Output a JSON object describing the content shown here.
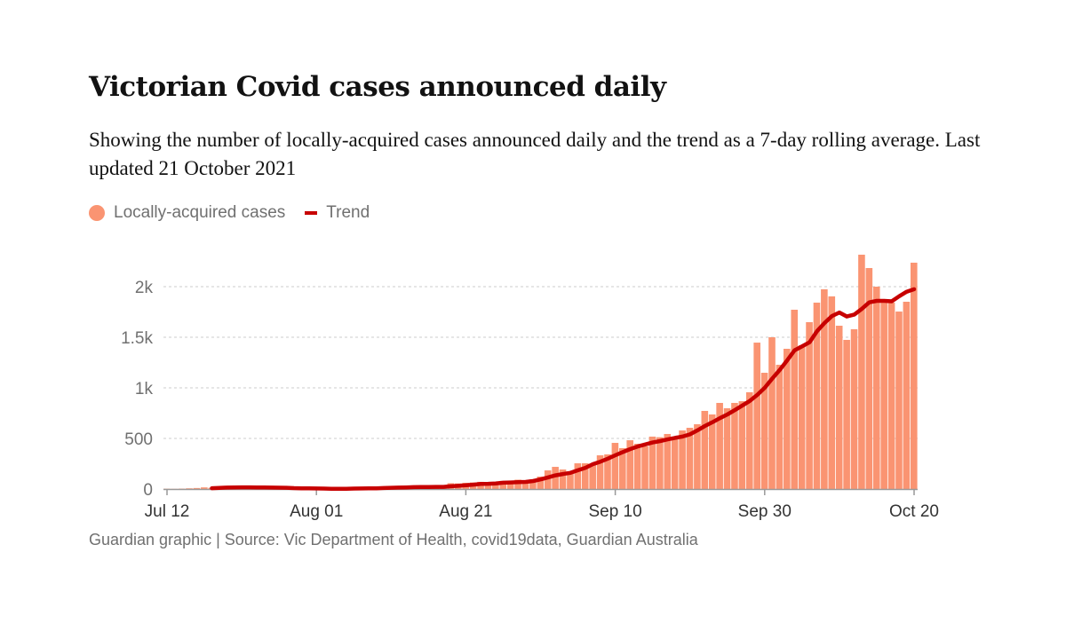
{
  "title": "Victorian Covid cases announced daily",
  "subtitle": "Showing the number of locally-acquired cases announced daily and the trend as a 7-day rolling average. Last updated 21 October 2021",
  "footer": "Guardian graphic | Source: Vic Department of Health, covid19data, Guardian Australia",
  "colors": {
    "bars": "#fa9472",
    "trend": "#c70000",
    "grid": "#cccccc",
    "axis": "#999999",
    "text": "#707070"
  },
  "chart_data": {
    "type": "bar",
    "title": "",
    "xlabel": "",
    "ylabel": "",
    "ylim": [
      0,
      2350
    ],
    "grid": "horizontal dotted",
    "legend_placement": "top-left",
    "legend": [
      {
        "name": "Locally-acquired cases",
        "type": "bar",
        "color": "#fa9472"
      },
      {
        "name": "Trend",
        "type": "line",
        "color": "#c70000"
      }
    ],
    "y_ticks": [
      {
        "value": 0,
        "label": "0"
      },
      {
        "value": 500,
        "label": "500"
      },
      {
        "value": 1000,
        "label": "1k"
      },
      {
        "value": 1500,
        "label": "1.5k"
      },
      {
        "value": 2000,
        "label": "2k"
      }
    ],
    "x_ticks": [
      "Jul 12",
      "Aug 01",
      "Aug 21",
      "Sep 10",
      "Sep 30",
      "Oct 20"
    ],
    "x": [
      "Jul 12",
      "Jul 13",
      "Jul 14",
      "Jul 15",
      "Jul 16",
      "Jul 17",
      "Jul 18",
      "Jul 19",
      "Jul 20",
      "Jul 21",
      "Jul 22",
      "Jul 23",
      "Jul 24",
      "Jul 25",
      "Jul 26",
      "Jul 27",
      "Jul 28",
      "Jul 29",
      "Jul 30",
      "Jul 31",
      "Aug 01",
      "Aug 02",
      "Aug 03",
      "Aug 04",
      "Aug 05",
      "Aug 06",
      "Aug 07",
      "Aug 08",
      "Aug 09",
      "Aug 10",
      "Aug 11",
      "Aug 12",
      "Aug 13",
      "Aug 14",
      "Aug 15",
      "Aug 16",
      "Aug 17",
      "Aug 18",
      "Aug 19",
      "Aug 20",
      "Aug 21",
      "Aug 22",
      "Aug 23",
      "Aug 24",
      "Aug 25",
      "Aug 26",
      "Aug 27",
      "Aug 28",
      "Aug 29",
      "Aug 30",
      "Aug 31",
      "Sep 01",
      "Sep 02",
      "Sep 03",
      "Sep 04",
      "Sep 05",
      "Sep 06",
      "Sep 07",
      "Sep 08",
      "Sep 09",
      "Sep 10",
      "Sep 11",
      "Sep 12",
      "Sep 13",
      "Sep 14",
      "Sep 15",
      "Sep 16",
      "Sep 17",
      "Sep 18",
      "Sep 19",
      "Sep 20",
      "Sep 21",
      "Sep 22",
      "Sep 23",
      "Sep 24",
      "Sep 25",
      "Sep 26",
      "Sep 27",
      "Sep 28",
      "Sep 29",
      "Sep 30",
      "Oct 01",
      "Oct 02",
      "Oct 03",
      "Oct 04",
      "Oct 05",
      "Oct 06",
      "Oct 07",
      "Oct 08",
      "Oct 09",
      "Oct 10",
      "Oct 11",
      "Oct 12",
      "Oct 13",
      "Oct 14",
      "Oct 15",
      "Oct 16",
      "Oct 17",
      "Oct 18",
      "Oct 19",
      "Oct 20"
    ],
    "series": [
      {
        "name": "Locally-acquired cases",
        "type": "bar",
        "values": [
          3,
          2,
          4,
          7,
          10,
          16,
          12,
          13,
          22,
          26,
          14,
          10,
          12,
          11,
          10,
          11,
          8,
          0,
          1,
          2,
          2,
          6,
          0,
          3,
          6,
          8,
          11,
          7,
          14,
          20,
          21,
          21,
          15,
          19,
          22,
          24,
          22,
          24,
          57,
          55,
          61,
          65,
          71,
          50,
          45,
          80,
          64,
          92,
          73,
          96,
          123,
          184,
          219,
          193,
          175,
          254,
          254,
          237,
          333,
          342,
          456,
          404,
          482,
          447,
          421,
          518,
          512,
          544,
          509,
          579,
          605,
          640,
          772,
          737,
          851,
          798,
          851,
          868,
          956,
          1447,
          1149,
          1500,
          1228,
          1386,
          1772,
          1420,
          1649,
          1842,
          1974,
          1904,
          1614,
          1474,
          1579,
          2316,
          2184,
          2000,
          1851,
          1842,
          1754,
          1851,
          2237
        ]
      },
      {
        "name": "Trend",
        "type": "line",
        "values": [
          null,
          null,
          null,
          null,
          null,
          null,
          8,
          11,
          14,
          16,
          17,
          17,
          15,
          15,
          14,
          13,
          12,
          9,
          7,
          6,
          5,
          4,
          3,
          3,
          3,
          4,
          5,
          6,
          7,
          10,
          12,
          14,
          16,
          18,
          19,
          20,
          21,
          21,
          27,
          32,
          37,
          43,
          50,
          52,
          55,
          62,
          65,
          68,
          70,
          79,
          95,
          115,
          135,
          148,
          160,
          185,
          210,
          246,
          270,
          300,
          333,
          365,
          395,
          420,
          440,
          460,
          474,
          490,
          505,
          518,
          540,
          580,
          623,
          660,
          700,
          737,
          780,
          825,
          870,
          930,
          1000,
          1090,
          1175,
          1270,
          1370,
          1410,
          1450,
          1560,
          1640,
          1710,
          1745,
          1705,
          1725,
          1780,
          1845,
          1860,
          1860,
          1855,
          1905,
          1950,
          1975
        ]
      }
    ]
  }
}
